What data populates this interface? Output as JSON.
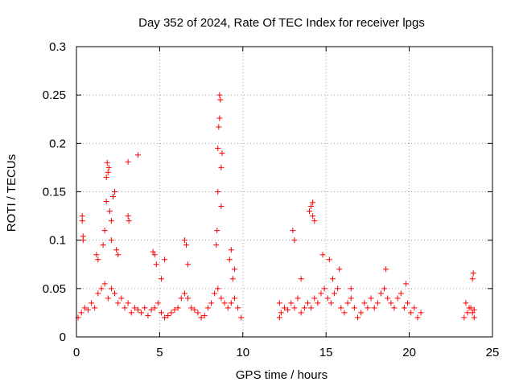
{
  "chart_data": {
    "type": "scatter",
    "title": "Day 352 of 2024, Rate Of TEC Index for receiver lpgs",
    "xlabel": "GPS time / hours",
    "ylabel": "ROTI / TECUs",
    "xlim": [
      0,
      25
    ],
    "ylim": [
      0,
      0.3
    ],
    "xticks": [
      "0",
      "5",
      "10",
      "15",
      "20",
      "25"
    ],
    "yticks": [
      "0",
      "0.05",
      "0.1",
      "0.15",
      "0.2",
      "0.25",
      "0.3"
    ],
    "grid": true,
    "marker": "+",
    "color": "#ff0000",
    "series": [
      {
        "x": [
          0.1,
          0.3,
          0.5,
          0.7,
          0.9,
          1.1,
          1.3,
          1.5,
          1.7,
          1.9,
          2.1,
          2.3,
          2.5,
          2.7,
          2.9,
          3.1,
          3.3,
          3.5,
          3.7,
          3.9,
          4.1,
          4.3,
          4.5,
          4.7,
          4.9,
          5.1,
          5.3,
          5.5,
          5.7,
          5.9,
          6.1,
          6.3,
          6.5,
          6.7,
          6.9,
          7.1,
          7.3,
          7.5,
          7.7,
          7.9,
          8.1,
          8.3,
          8.5,
          8.7,
          8.9,
          9.1,
          9.3,
          9.5,
          9.7,
          9.9,
          0.35,
          0.35,
          0.4,
          0.4,
          1.2,
          1.3,
          1.6,
          1.7,
          1.8,
          1.8,
          1.85,
          1.9,
          1.95,
          2.0,
          2.1,
          2.1,
          2.2,
          2.3,
          2.4,
          2.5,
          3.1,
          3.1,
          3.15,
          3.7,
          4.6,
          4.7,
          4.8,
          5.1,
          5.3,
          6.5,
          6.6,
          6.7,
          8.4,
          8.45,
          8.5,
          8.5,
          8.55,
          8.6,
          8.6,
          8.65,
          8.7,
          8.7,
          8.75,
          9.2,
          9.3,
          9.4,
          9.5,
          12.2,
          12.3,
          12.5,
          12.7,
          12.9,
          13.1,
          13.3,
          13.5,
          13.7,
          13.9,
          14.1,
          14.3,
          14.5,
          14.7,
          14.9,
          15.1,
          15.3,
          15.5,
          15.7,
          15.9,
          16.1,
          16.3,
          16.5,
          16.7,
          16.9,
          17.1,
          17.3,
          17.5,
          17.7,
          17.9,
          18.1,
          18.3,
          18.5,
          18.7,
          18.9,
          19.1,
          19.3,
          19.5,
          19.7,
          19.9,
          20.1,
          20.3,
          20.5,
          20.7,
          12.2,
          13.0,
          13.1,
          13.5,
          14.0,
          14.1,
          14.2,
          14.2,
          14.3,
          14.8,
          15.2,
          15.4,
          15.8,
          16.5,
          18.6,
          19.8,
          23.4,
          23.6,
          23.8,
          23.9,
          23.3,
          23.5,
          23.7,
          23.9,
          23.85,
          23.8
        ],
        "y": [
          0.02,
          0.025,
          0.03,
          0.028,
          0.035,
          0.03,
          0.045,
          0.05,
          0.055,
          0.04,
          0.05,
          0.045,
          0.035,
          0.04,
          0.03,
          0.035,
          0.025,
          0.03,
          0.028,
          0.025,
          0.03,
          0.022,
          0.028,
          0.03,
          0.035,
          0.025,
          0.02,
          0.022,
          0.025,
          0.028,
          0.03,
          0.04,
          0.045,
          0.04,
          0.03,
          0.028,
          0.025,
          0.02,
          0.022,
          0.03,
          0.035,
          0.045,
          0.05,
          0.04,
          0.035,
          0.03,
          0.035,
          0.04,
          0.03,
          0.02,
          0.12,
          0.125,
          0.104,
          0.1,
          0.085,
          0.08,
          0.095,
          0.11,
          0.14,
          0.165,
          0.18,
          0.17,
          0.175,
          0.13,
          0.1,
          0.12,
          0.145,
          0.15,
          0.09,
          0.085,
          0.181,
          0.125,
          0.12,
          0.188,
          0.088,
          0.085,
          0.075,
          0.06,
          0.08,
          0.1,
          0.095,
          0.075,
          0.095,
          0.11,
          0.15,
          0.195,
          0.217,
          0.226,
          0.25,
          0.245,
          0.175,
          0.135,
          0.19,
          0.08,
          0.09,
          0.06,
          0.07,
          0.02,
          0.025,
          0.03,
          0.028,
          0.035,
          0.03,
          0.04,
          0.025,
          0.03,
          0.035,
          0.03,
          0.04,
          0.035,
          0.045,
          0.05,
          0.04,
          0.035,
          0.045,
          0.05,
          0.03,
          0.025,
          0.035,
          0.04,
          0.03,
          0.02,
          0.025,
          0.035,
          0.03,
          0.04,
          0.03,
          0.035,
          0.045,
          0.05,
          0.04,
          0.035,
          0.03,
          0.04,
          0.045,
          0.03,
          0.035,
          0.025,
          0.03,
          0.02,
          0.025,
          0.035,
          0.11,
          0.1,
          0.06,
          0.13,
          0.135,
          0.139,
          0.125,
          0.12,
          0.085,
          0.08,
          0.06,
          0.07,
          0.05,
          0.07,
          0.055,
          0.035,
          0.03,
          0.025,
          0.028,
          0.02,
          0.025,
          0.03,
          0.02,
          0.066,
          0.06
        ]
      }
    ]
  }
}
